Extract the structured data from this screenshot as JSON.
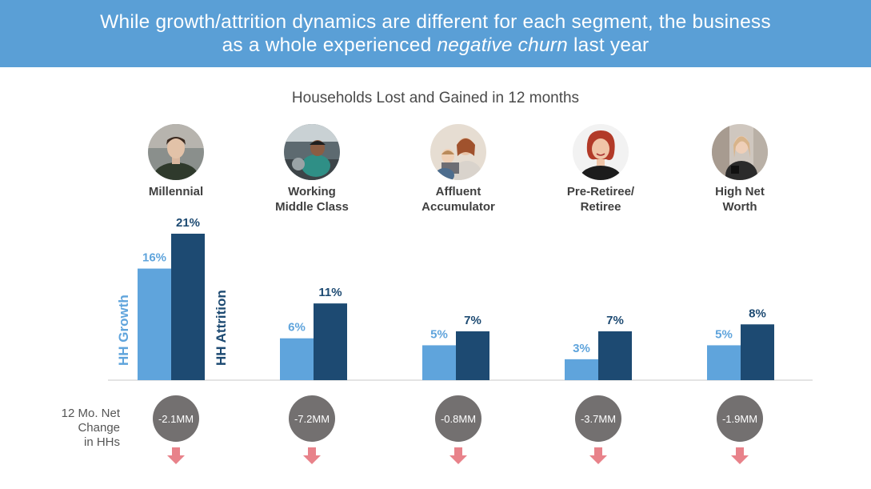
{
  "header": {
    "title_part1": "While growth/attrition dynamics are different for each segment, the business",
    "title_part2": "as a whole experienced",
    "title_emphasis": "negative churn",
    "title_part3": "last year"
  },
  "chart_data": {
    "type": "bar",
    "title": "Households Lost and Gained in 12 months",
    "categories": [
      "Millennial",
      "Working Middle Class",
      "Affluent Accumulator",
      "Pre-Retiree/ Retiree",
      "High Net Worth"
    ],
    "category_lines": [
      [
        "Millennial"
      ],
      [
        "Working",
        "Middle Class"
      ],
      [
        "Affluent",
        "Accumulator"
      ],
      [
        "Pre-Retiree/",
        "Retiree"
      ],
      [
        "High Net",
        "Worth"
      ]
    ],
    "series": [
      {
        "name": "HH Growth",
        "values": [
          16,
          6,
          5,
          3,
          5
        ],
        "labels": [
          "16%",
          "6%",
          "5%",
          "3%",
          "5%"
        ],
        "color": "#5fa4dc"
      },
      {
        "name": "HH Attrition",
        "values": [
          21,
          11,
          7,
          7,
          8
        ],
        "labels": [
          "21%",
          "11%",
          "7%",
          "7%",
          "8%"
        ],
        "color": "#1d4a72"
      }
    ],
    "unit": "%",
    "ylim": [
      0,
      21
    ],
    "grid": false,
    "legend": "rotated labels beside first category"
  },
  "net_change": {
    "label_lines": [
      "12 Mo. Net",
      "Change",
      "in HHs"
    ],
    "values": [
      "-2.1MM",
      "-7.2MM",
      "-0.8MM",
      "-3.7MM",
      "-1.9MM"
    ],
    "circle_color": "#737070",
    "arrow_color": "#e8828a",
    "arrow_icon": "down-arrow-icon"
  },
  "avatars": [
    "young-man-photo",
    "mechanic-photo",
    "family-photo",
    "woman-smiling-photo",
    "businesswoman-photo"
  ],
  "colors": {
    "banner": "#5a9fd6",
    "growth": "#5fa4dc",
    "attrition": "#1d4a72",
    "axis": "#c8c8c8"
  }
}
